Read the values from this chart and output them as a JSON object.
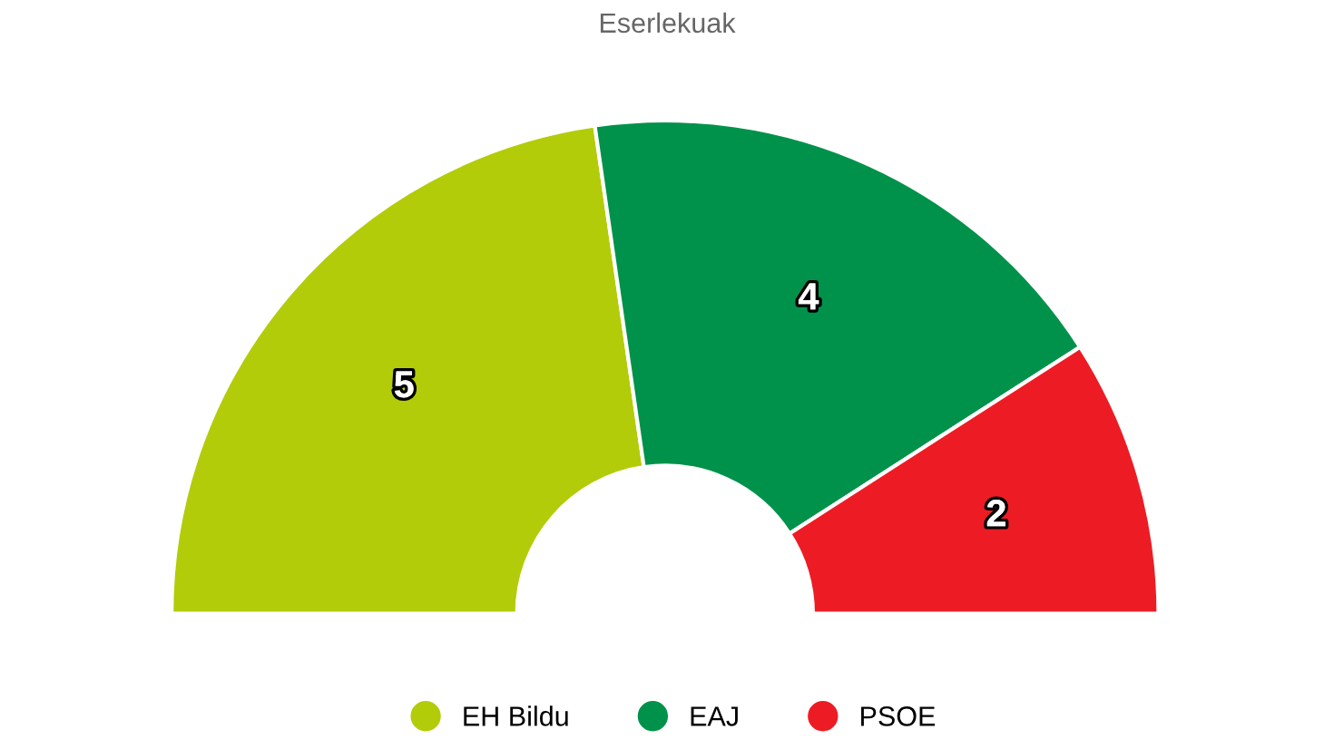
{
  "chart_data": {
    "type": "donut",
    "title": "Eserlekuak",
    "categories": [
      "EH Bildu",
      "EAJ",
      "PSOE"
    ],
    "values": [
      5,
      4,
      2
    ],
    "colors": [
      "#b3cc0a",
      "#00924a",
      "#ed1c24"
    ],
    "data_labels": true,
    "legend": "bottom"
  }
}
